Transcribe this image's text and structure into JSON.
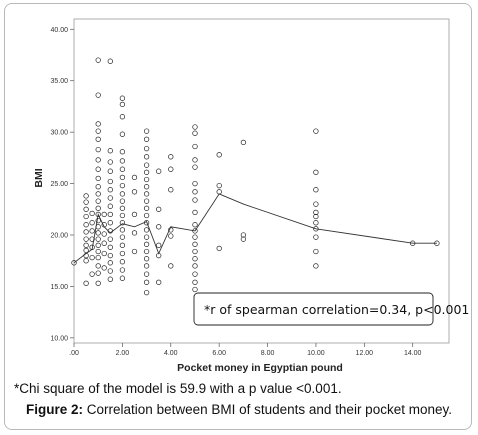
{
  "chart_data": {
    "type": "scatter",
    "xlabel": "Pocket money in Egyptian pound",
    "ylabel": "BMI",
    "xlim": [
      0,
      15.5
    ],
    "ylim": [
      9.5,
      41
    ],
    "x_ticks": [
      ".00",
      "2.00",
      "4.00",
      "6.00",
      "8.00",
      "10.00",
      "12.00",
      "14.00"
    ],
    "x_tick_values": [
      0,
      2,
      4,
      6,
      8,
      10,
      12,
      14
    ],
    "y_ticks": [
      "10.00",
      "15.00",
      "20.00",
      "25.00",
      "30.00",
      "35.00",
      "40.00"
    ],
    "y_tick_values": [
      10,
      15,
      20,
      25,
      30,
      35,
      40
    ],
    "grid": false,
    "annotation": "*r of spearman correlation=0.34, p<0.001",
    "points": [
      [
        0,
        17.3
      ],
      [
        0.5,
        15.3
      ],
      [
        0.5,
        17.5
      ],
      [
        0.5,
        18.0
      ],
      [
        0.5,
        18.5
      ],
      [
        0.5,
        19.0
      ],
      [
        0.5,
        19.6
      ],
      [
        0.5,
        20.3
      ],
      [
        0.5,
        21.0
      ],
      [
        0.5,
        21.8
      ],
      [
        0.5,
        22.5
      ],
      [
        0.5,
        23.2
      ],
      [
        0.5,
        23.8
      ],
      [
        0.75,
        16.2
      ],
      [
        0.75,
        17.8
      ],
      [
        0.75,
        18.8
      ],
      [
        0.75,
        19.6
      ],
      [
        0.75,
        20.4
      ],
      [
        0.75,
        21.2
      ],
      [
        0.75,
        22.1
      ],
      [
        1,
        15.3
      ],
      [
        1,
        16.3
      ],
      [
        1,
        17.0
      ],
      [
        1,
        17.8
      ],
      [
        1,
        18.4
      ],
      [
        1,
        19.0
      ],
      [
        1,
        19.6
      ],
      [
        1,
        20.2
      ],
      [
        1,
        20.8
      ],
      [
        1,
        21.4
      ],
      [
        1,
        22.0
      ],
      [
        1,
        22.6
      ],
      [
        1,
        23.3
      ],
      [
        1,
        24.0
      ],
      [
        1,
        24.7
      ],
      [
        1,
        25.5
      ],
      [
        1,
        26.4
      ],
      [
        1,
        27.3
      ],
      [
        1,
        28.3
      ],
      [
        1,
        29.3
      ],
      [
        1,
        30.1
      ],
      [
        1,
        30.8
      ],
      [
        1,
        33.6
      ],
      [
        1,
        37.0
      ],
      [
        1.25,
        16.8
      ],
      [
        1.25,
        18.2
      ],
      [
        1.25,
        19.2
      ],
      [
        1.25,
        20.1
      ],
      [
        1.25,
        21.0
      ],
      [
        1.25,
        22.0
      ],
      [
        1.5,
        15.7
      ],
      [
        1.5,
        16.5
      ],
      [
        1.5,
        17.3
      ],
      [
        1.5,
        18.0
      ],
      [
        1.5,
        18.8
      ],
      [
        1.5,
        19.6
      ],
      [
        1.5,
        20.4
      ],
      [
        1.5,
        21.2
      ],
      [
        1.5,
        22.0
      ],
      [
        1.5,
        22.8
      ],
      [
        1.5,
        23.6
      ],
      [
        1.5,
        24.4
      ],
      [
        1.5,
        25.2
      ],
      [
        1.5,
        26.2
      ],
      [
        1.5,
        27.1
      ],
      [
        1.5,
        28.2
      ],
      [
        1.5,
        36.9
      ],
      [
        2,
        15.8
      ],
      [
        2,
        16.6
      ],
      [
        2,
        17.4
      ],
      [
        2,
        18.2
      ],
      [
        2,
        19.0
      ],
      [
        2,
        19.8
      ],
      [
        2,
        20.5
      ],
      [
        2,
        21.2
      ],
      [
        2,
        21.9
      ],
      [
        2,
        22.6
      ],
      [
        2,
        23.3
      ],
      [
        2,
        24.0
      ],
      [
        2,
        24.8
      ],
      [
        2,
        25.6
      ],
      [
        2,
        26.4
      ],
      [
        2,
        27.2
      ],
      [
        2,
        28.1
      ],
      [
        2,
        29.8
      ],
      [
        2,
        31.5
      ],
      [
        2,
        32.7
      ],
      [
        2,
        33.3
      ],
      [
        2.5,
        18.4
      ],
      [
        2.5,
        20.2
      ],
      [
        2.5,
        22.0
      ],
      [
        2.5,
        24.2
      ],
      [
        2.5,
        25.6
      ],
      [
        3,
        14.4
      ],
      [
        3,
        15.4
      ],
      [
        3,
        16.2
      ],
      [
        3,
        17.0
      ],
      [
        3,
        17.7
      ],
      [
        3,
        18.4
      ],
      [
        3,
        19.1
      ],
      [
        3,
        19.8
      ],
      [
        3,
        20.5
      ],
      [
        3,
        21.2
      ],
      [
        3,
        21.9
      ],
      [
        3,
        22.6
      ],
      [
        3,
        23.3
      ],
      [
        3,
        24.0
      ],
      [
        3,
        24.7
      ],
      [
        3,
        25.4
      ],
      [
        3,
        26.1
      ],
      [
        3,
        26.8
      ],
      [
        3,
        27.6
      ],
      [
        3,
        28.4
      ],
      [
        3,
        29.3
      ],
      [
        3,
        30.1
      ],
      [
        3.5,
        15.4
      ],
      [
        3.5,
        18.0
      ],
      [
        3.5,
        19.0
      ],
      [
        3.5,
        20.8
      ],
      [
        3.5,
        22.5
      ],
      [
        3.5,
        26.2
      ],
      [
        4,
        17.0
      ],
      [
        4,
        19.9
      ],
      [
        4,
        20.5
      ],
      [
        4,
        24.4
      ],
      [
        4,
        26.4
      ],
      [
        4,
        27.6
      ],
      [
        5,
        14.7
      ],
      [
        5,
        15.4
      ],
      [
        5,
        16.2
      ],
      [
        5,
        17.0
      ],
      [
        5,
        17.7
      ],
      [
        5,
        18.4
      ],
      [
        5,
        19.1
      ],
      [
        5,
        19.8
      ],
      [
        5,
        20.4
      ],
      [
        5,
        21.0
      ],
      [
        5,
        22.2
      ],
      [
        5,
        23.4
      ],
      [
        5,
        24.2
      ],
      [
        5,
        25.0
      ],
      [
        5,
        26.6
      ],
      [
        5,
        27.3
      ],
      [
        5,
        28.6
      ],
      [
        5,
        29.9
      ],
      [
        5,
        30.5
      ],
      [
        6,
        18.7
      ],
      [
        6,
        24.2
      ],
      [
        6,
        24.8
      ],
      [
        6,
        27.8
      ],
      [
        7,
        19.6
      ],
      [
        7,
        20.0
      ],
      [
        7,
        29.0
      ],
      [
        10,
        17.0
      ],
      [
        10,
        18.4
      ],
      [
        10,
        19.8
      ],
      [
        10,
        20.6
      ],
      [
        10,
        21.2
      ],
      [
        10,
        21.8
      ],
      [
        10,
        22.2
      ],
      [
        10,
        23.0
      ],
      [
        10,
        24.4
      ],
      [
        10,
        26.1
      ],
      [
        10,
        30.1
      ],
      [
        14,
        19.2
      ],
      [
        15,
        19.2
      ]
    ],
    "fit_line": [
      [
        0,
        17.3
      ],
      [
        0.5,
        18.2
      ],
      [
        0.75,
        18.6
      ],
      [
        1,
        22.0
      ],
      [
        1.25,
        20.8
      ],
      [
        1.5,
        20.2
      ],
      [
        2,
        21.1
      ],
      [
        2.5,
        20.8
      ],
      [
        3,
        21.3
      ],
      [
        3.5,
        18.2
      ],
      [
        4,
        20.8
      ],
      [
        5,
        20.4
      ],
      [
        6,
        24.0
      ],
      [
        7,
        23.0
      ],
      [
        10,
        20.6
      ],
      [
        14,
        19.2
      ],
      [
        15,
        19.2
      ]
    ]
  },
  "notes": {
    "chi_square": "*Chi square of the model is 59.9 with a p value <0.001."
  },
  "caption": {
    "label": "Figure 2:",
    "text": " Correlation between BMI of students and their pocket money."
  }
}
